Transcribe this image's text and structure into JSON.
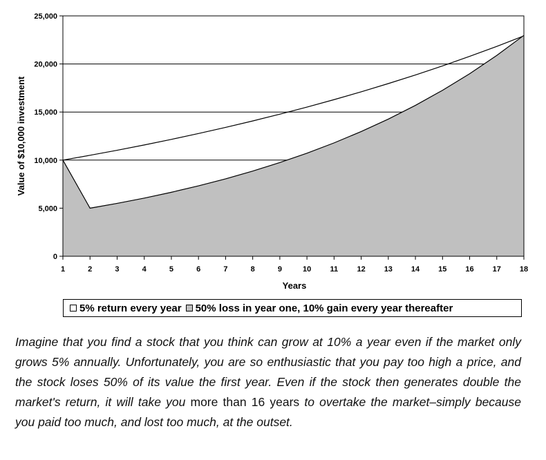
{
  "chart_data": {
    "type": "area",
    "title": "",
    "xlabel": "Years",
    "ylabel": "Value of $10,000 investment",
    "x": [
      1,
      2,
      3,
      4,
      5,
      6,
      7,
      8,
      9,
      10,
      11,
      12,
      13,
      14,
      15,
      16,
      17,
      18
    ],
    "xlim": [
      1,
      18
    ],
    "ylim": [
      0,
      25000
    ],
    "yticks": [
      "0",
      "5,000",
      "10,000",
      "15,000",
      "20,000",
      "25,000"
    ],
    "xticks": [
      "1",
      "2",
      "3",
      "4",
      "5",
      "6",
      "7",
      "8",
      "9",
      "10",
      "11",
      "12",
      "13",
      "14",
      "15",
      "16",
      "17",
      "18"
    ],
    "grid": "horizontal",
    "legend_position": "bottom",
    "series": [
      {
        "name": "5% return every year",
        "style": "line",
        "color": "#000000",
        "fill": "#ffffff",
        "values": [
          10000,
          10500,
          11025,
          11576,
          12155,
          12763,
          13401,
          14071,
          14775,
          15513,
          16289,
          17103,
          17959,
          18856,
          19799,
          20789,
          21829,
          22920
        ]
      },
      {
        "name": "50% loss in year one, 10% gain every year thereafter",
        "style": "area",
        "color": "#000000",
        "fill": "#c0c0c0",
        "values": [
          10000,
          5000,
          5500,
          6050,
          6655,
          7321,
          8053,
          8858,
          9744,
          10718,
          11790,
          12969,
          14266,
          15692,
          17261,
          18987,
          20886,
          22975
        ]
      }
    ]
  },
  "caption": {
    "part1": "Imagine that you find a stock that you think can grow at 10% a year even if the market only grows 5% annually. Unfortunately, you are so enthusiastic that you pay too high a price, and the stock loses 50% of its value the first year. Even if the stock then generates double the market's return, it will take you",
    "part2": " more than 16 years ",
    "part3": "to overtake the market–simply because you paid too much, and lost too much, at the outset."
  }
}
